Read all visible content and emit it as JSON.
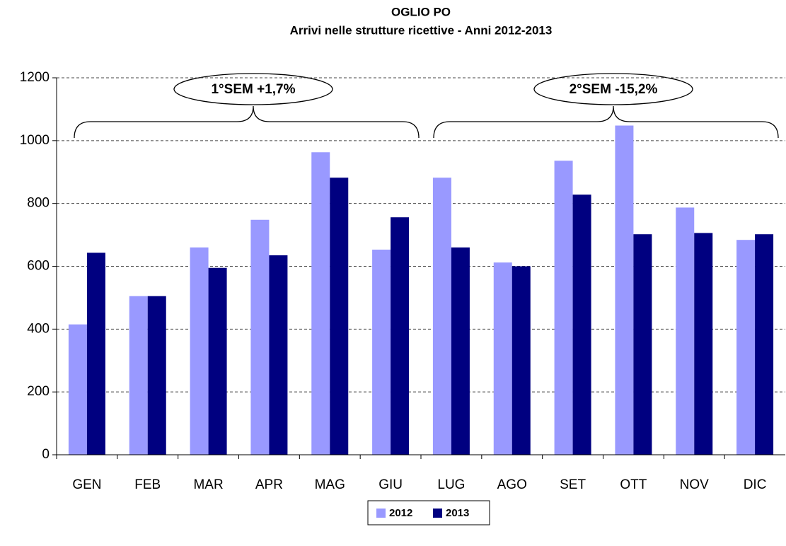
{
  "chart_data": {
    "type": "bar",
    "title": "OGLIO PO",
    "subtitle": "Arrivi nelle strutture ricettive - Anni 2012-2013",
    "categories": [
      "GEN",
      "FEB",
      "MAR",
      "APR",
      "MAG",
      "GIU",
      "LUG",
      "AGO",
      "SET",
      "OTT",
      "NOV",
      "DIC"
    ],
    "series": [
      {
        "name": "2012",
        "color": "#9999ff",
        "values": [
          415,
          505,
          660,
          748,
          963,
          653,
          882,
          612,
          936,
          1048,
          787,
          684
        ]
      },
      {
        "name": "2013",
        "color": "#000080",
        "values": [
          643,
          505,
          595,
          635,
          882,
          756,
          660,
          600,
          828,
          702,
          706,
          702
        ]
      }
    ],
    "annotations": [
      "1°SEM +1,7%",
      "2°SEM -15,2%"
    ],
    "ylim": [
      0,
      1200
    ],
    "yticks": [
      0,
      200,
      400,
      600,
      800,
      1000,
      1200
    ],
    "grid": true,
    "legend": "bottom"
  }
}
